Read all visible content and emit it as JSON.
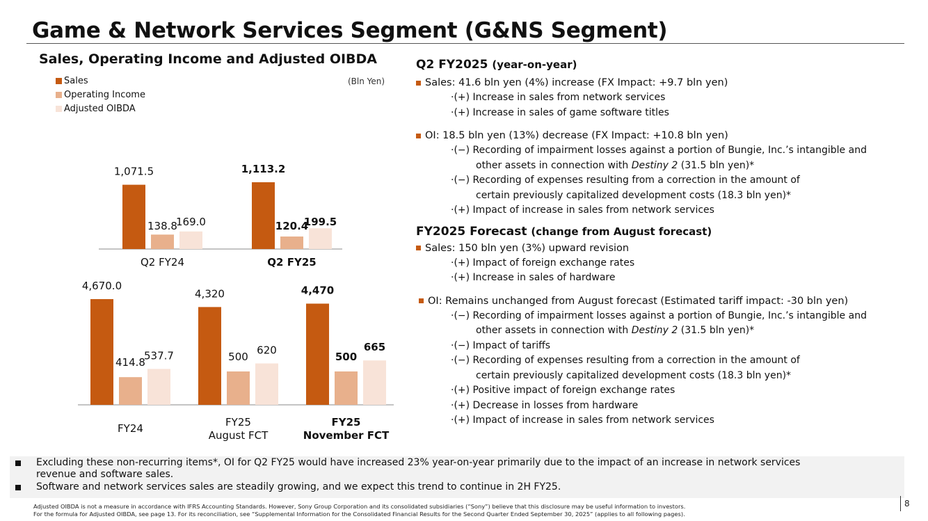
{
  "title": "Game & Network Services Segment (G&NS Segment)",
  "chart_heading": "Sales, Operating Income and Adjusted OIBDA",
  "colors": {
    "sales": "#c55a11",
    "oi": "#e8b08c",
    "oibda": "#f8e3d8",
    "accent": "#c55a11"
  },
  "chart_data": {
    "type": "bar",
    "title": "Sales, Operating Income and Adjusted OIBDA",
    "unit": "(Bln Yen)",
    "legend": [
      "Sales",
      "Operating Income",
      "Adjusted OIBDA"
    ],
    "panels": [
      {
        "name": "quarterly",
        "groups": [
          {
            "label": "Q2 FY24",
            "label2": "",
            "bold": false,
            "values": [
              1071.5,
              138.8,
              169.0
            ],
            "labels": [
              "1,071.5",
              "138.8",
              "169.0"
            ]
          },
          {
            "label": "Q2 FY25",
            "label2": "",
            "bold": true,
            "values": [
              1113.2,
              120.4,
              199.5
            ],
            "labels": [
              "1,113.2",
              "120.4",
              "199.5"
            ]
          }
        ]
      },
      {
        "name": "annual",
        "groups": [
          {
            "label": "FY24",
            "label2": "",
            "bold": false,
            "values": [
              4670.0,
              414.8,
              537.7
            ],
            "labels": [
              "4,670.0",
              "414.8",
              "537.7"
            ]
          },
          {
            "label": "FY25",
            "label2": "August FCT",
            "bold": false,
            "values": [
              4320,
              500,
              620
            ],
            "labels": [
              "4,320",
              "500",
              "620"
            ]
          },
          {
            "label": "FY25",
            "label2": "November FCT",
            "bold": true,
            "values": [
              4470,
              500,
              665
            ],
            "labels": [
              "4,470",
              "500",
              "665"
            ]
          }
        ]
      }
    ]
  },
  "q2": {
    "heading": "Q2 FY2025",
    "heading_sub": "(year-on-year)",
    "sales": {
      "text": "Sales: 41.6 bln yen (4%) increase (FX Impact: +9.7 bln yen)",
      "items": [
        "·(+) Increase in sales from network services",
        "·(+) Increase in sales of game software titles"
      ]
    },
    "oi": {
      "text": "OI: 18.5 bln yen (13%) decrease (FX Impact: +10.8 bln yen)",
      "item1": "·(−) Recording of impairment losses against a portion of Bungie, Inc.’s intangible and",
      "item1_cont_a": "other assets in connection with ",
      "item1_cont_em": "Destiny 2",
      "item1_cont_b": " (31.5 bln yen)*",
      "item2": "·(−) Recording of expenses resulting from a correction in the amount of",
      "item2_cont": "certain previously capitalized development costs (18.3 bln yen)*",
      "item3": "·(+) Impact of increase in sales from network services"
    }
  },
  "fy": {
    "heading": "FY2025 Forecast",
    "heading_sub": "(change from August forecast)",
    "sales": {
      "text": "Sales: 150 bln yen (3%) upward revision",
      "items": [
        "·(+) Impact of foreign exchange rates",
        "·(+) Increase in sales of hardware"
      ]
    },
    "oi": {
      "text": "OI: Remains unchanged from August forecast (Estimated tariff impact: -30 bln yen)",
      "item1": "·(−) Recording of impairment losses against a portion of Bungie, Inc.’s intangible and",
      "item1_cont_a": "other assets in connection with ",
      "item1_cont_em": "Destiny 2",
      "item1_cont_b": " (31.5 bln yen)*",
      "item2": "·(−) Impact of tariffs",
      "item3": "·(−) Recording of expenses resulting from a correction in the amount of",
      "item3_cont": "certain previously capitalized development costs (18.3 bln yen)*",
      "item4": "·(+) Positive impact of foreign exchange rates",
      "item5": "·(+) Decrease in losses from hardware",
      "item6": "·(+) Impact of increase in sales from network services"
    }
  },
  "summary": {
    "line1": "Excluding these non-recurring items*, OI for Q2 FY25 would have increased 23% year-on-year primarily due to the impact of an increase in network services",
    "line1_cont": "revenue and software sales.",
    "line2": "Software and network services sales are steadily growing, and we expect this trend to continue in 2H FY25."
  },
  "footnote": {
    "line1": "Adjusted OIBDA is not a measure in accordance with IFRS Accounting Standards. However, Sony Group Corporation and its consolidated subsidiaries (“Sony”) believe that this disclosure may be useful information to investors.",
    "line2": "For the formula for Adjusted OIBDA, see page 13. For its reconciliation, see “Supplemental Information for the Consolidated Financial Results for the Second Quarter Ended September 30, 2025” (applies to all following pages)."
  },
  "page_number": "8"
}
